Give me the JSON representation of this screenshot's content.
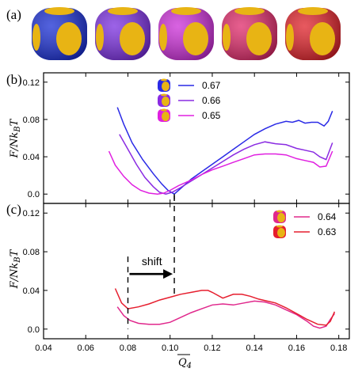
{
  "panel_labels": {
    "a": "(a)",
    "b": "(b)",
    "c": "(c)"
  },
  "cube_colors": [
    "#1a2fd4",
    "#7b2fe0",
    "#cc2fd8",
    "#e02a6a",
    "#e0222a"
  ],
  "particle_face_color": "#e8b414",
  "chart_data": [
    {
      "type": "line",
      "panel": "(b)",
      "ylabel": "F/Nk_BT",
      "ylim": [
        -0.01,
        0.13
      ],
      "yticks": [
        "0.0",
        "0.04",
        "0.08",
        "0.12"
      ],
      "xlim": [
        0.04,
        0.185
      ],
      "series": [
        {
          "name": "0.67",
          "color": "#2a2ae6",
          "x": [
            0.075,
            0.078,
            0.082,
            0.087,
            0.092,
            0.096,
            0.099,
            0.102,
            0.106,
            0.11,
            0.115,
            0.12,
            0.125,
            0.13,
            0.135,
            0.14,
            0.145,
            0.15,
            0.155,
            0.158,
            0.161,
            0.164,
            0.167,
            0.17,
            0.173,
            0.175,
            0.177
          ],
          "y": [
            0.093,
            0.075,
            0.055,
            0.037,
            0.022,
            0.011,
            0.004,
            0.0,
            0.008,
            0.016,
            0.024,
            0.032,
            0.04,
            0.048,
            0.056,
            0.064,
            0.07,
            0.075,
            0.078,
            0.077,
            0.079,
            0.076,
            0.077,
            0.077,
            0.073,
            0.078,
            0.089
          ]
        },
        {
          "name": "0.66",
          "color": "#8a2be2",
          "x": [
            0.076,
            0.08,
            0.084,
            0.088,
            0.092,
            0.095,
            0.098,
            0.101,
            0.105,
            0.11,
            0.115,
            0.12,
            0.125,
            0.13,
            0.135,
            0.14,
            0.145,
            0.15,
            0.155,
            0.16,
            0.164,
            0.168,
            0.171,
            0.174,
            0.177
          ],
          "y": [
            0.064,
            0.048,
            0.032,
            0.018,
            0.008,
            0.002,
            0.0,
            0.002,
            0.007,
            0.014,
            0.021,
            0.028,
            0.035,
            0.042,
            0.048,
            0.053,
            0.056,
            0.054,
            0.053,
            0.049,
            0.047,
            0.045,
            0.04,
            0.037,
            0.055
          ]
        },
        {
          "name": "0.65",
          "color": "#e020e0",
          "x": [
            0.071,
            0.074,
            0.078,
            0.082,
            0.086,
            0.09,
            0.094,
            0.097,
            0.1,
            0.104,
            0.11,
            0.115,
            0.12,
            0.125,
            0.13,
            0.135,
            0.14,
            0.145,
            0.15,
            0.155,
            0.16,
            0.164,
            0.168,
            0.171,
            0.174,
            0.177
          ],
          "y": [
            0.046,
            0.031,
            0.019,
            0.01,
            0.004,
            0.001,
            0.0,
            0.001,
            0.004,
            0.009,
            0.015,
            0.021,
            0.026,
            0.03,
            0.034,
            0.038,
            0.042,
            0.043,
            0.043,
            0.042,
            0.038,
            0.036,
            0.034,
            0.029,
            0.03,
            0.046
          ]
        }
      ]
    },
    {
      "type": "line",
      "panel": "(c)",
      "xlabel": "Q_4 (overline)",
      "ylabel": "F/Nk_BT",
      "ylim": [
        -0.01,
        0.13
      ],
      "yticks": [
        "0.0",
        "0.04",
        "0.08",
        "0.12"
      ],
      "xlim": [
        0.04,
        0.185
      ],
      "xticks": [
        "0.04",
        "0.06",
        "0.08",
        "0.10",
        "0.12",
        "0.14",
        "0.16",
        "0.18"
      ],
      "annotation": {
        "text": "shift",
        "from_x": 0.08,
        "to_x": 0.102,
        "y": 0.057
      },
      "dashed_lines_x": [
        0.08,
        0.102
      ],
      "series": [
        {
          "name": "0.64",
          "color": "#e0288c",
          "x": [
            0.075,
            0.078,
            0.081,
            0.085,
            0.09,
            0.095,
            0.1,
            0.105,
            0.11,
            0.115,
            0.12,
            0.125,
            0.13,
            0.135,
            0.14,
            0.145,
            0.15,
            0.155,
            0.16,
            0.165,
            0.168,
            0.171,
            0.174,
            0.176,
            0.178
          ],
          "y": [
            0.023,
            0.014,
            0.009,
            0.006,
            0.005,
            0.005,
            0.007,
            0.012,
            0.017,
            0.021,
            0.025,
            0.026,
            0.025,
            0.027,
            0.029,
            0.028,
            0.025,
            0.02,
            0.015,
            0.008,
            0.003,
            0.001,
            0.003,
            0.01,
            0.016
          ]
        },
        {
          "name": "0.63",
          "color": "#e61e2e",
          "x": [
            0.074,
            0.077,
            0.08,
            0.085,
            0.09,
            0.095,
            0.1,
            0.105,
            0.11,
            0.115,
            0.118,
            0.12,
            0.125,
            0.13,
            0.134,
            0.138,
            0.142,
            0.146,
            0.15,
            0.155,
            0.16,
            0.165,
            0.17,
            0.174,
            0.176,
            0.178
          ],
          "y": [
            0.042,
            0.027,
            0.021,
            0.023,
            0.026,
            0.03,
            0.033,
            0.036,
            0.038,
            0.04,
            0.04,
            0.038,
            0.032,
            0.036,
            0.036,
            0.034,
            0.031,
            0.029,
            0.027,
            0.022,
            0.016,
            0.01,
            0.005,
            0.004,
            0.008,
            0.018
          ]
        }
      ]
    }
  ]
}
